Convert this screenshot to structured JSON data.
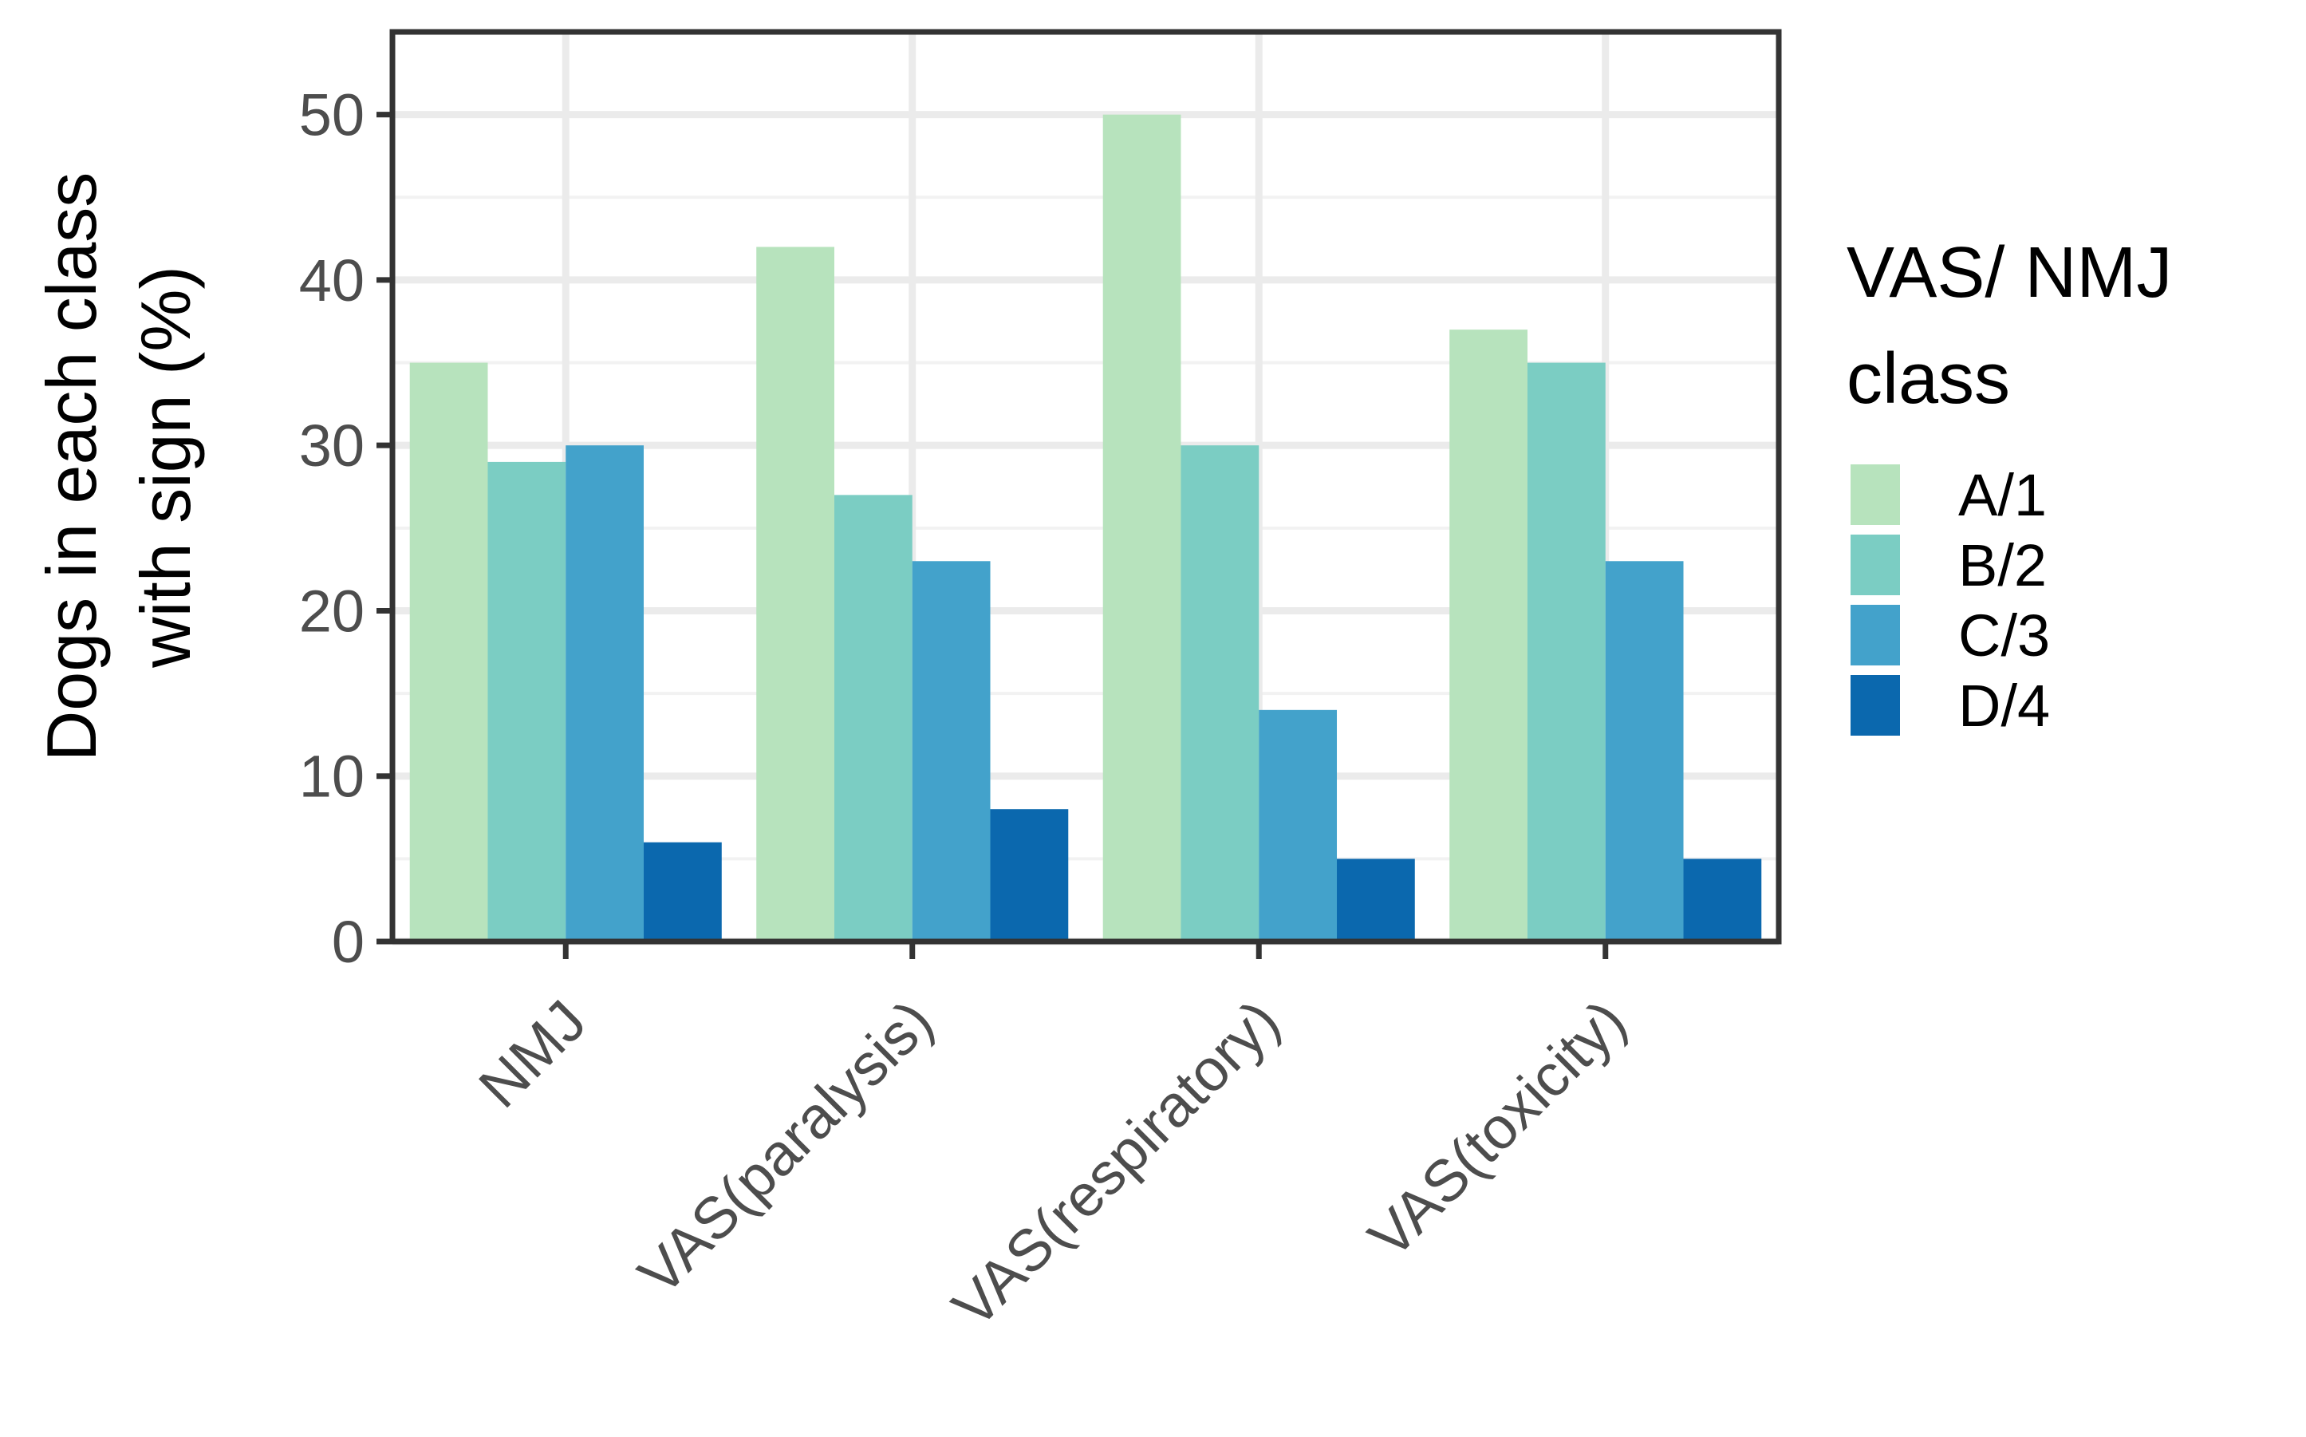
{
  "chart_data": {
    "type": "bar",
    "title": "",
    "xlabel": "",
    "ylabel_lines": [
      "Dogs in each class",
      "with sign (%)"
    ],
    "categories": [
      "NMJ",
      "VAS(paralysis)",
      "VAS(respiratory)",
      "VAS(toxicity)"
    ],
    "series": [
      {
        "name": "A/1",
        "color": "#b7e3bd",
        "values": [
          35,
          42,
          50,
          37
        ]
      },
      {
        "name": "B/2",
        "color": "#7bcdc3",
        "values": [
          29,
          27,
          30,
          35
        ]
      },
      {
        "name": "C/3",
        "color": "#43a2cb",
        "values": [
          30,
          23,
          14,
          23
        ]
      },
      {
        "name": "D/4",
        "color": "#0b68ae",
        "values": [
          6,
          8,
          5,
          5
        ]
      }
    ],
    "ylim": [
      0,
      55
    ],
    "yticks": [
      0,
      10,
      20,
      30,
      40,
      50
    ],
    "grid": true,
    "legend": {
      "title_lines": [
        "VAS/ NMJ",
        "class"
      ],
      "position": "right"
    }
  }
}
